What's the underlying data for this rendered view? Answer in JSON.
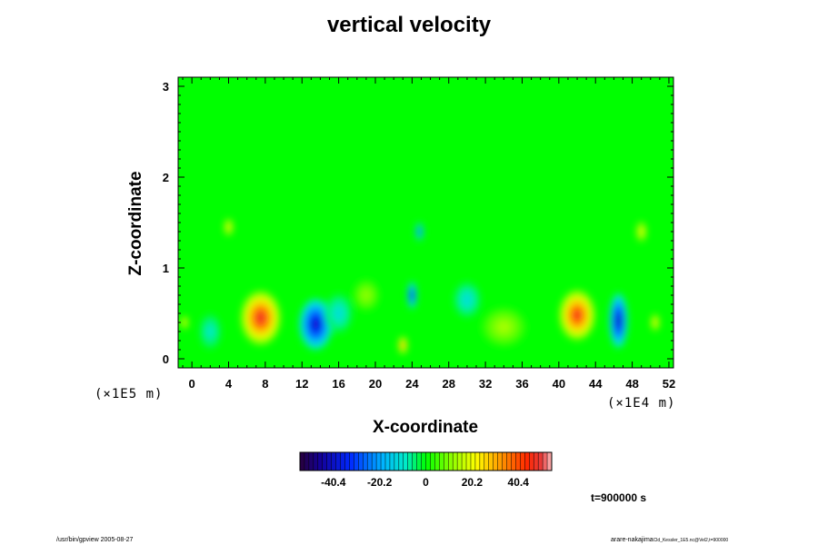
{
  "chart_data": {
    "type": "heatmap",
    "title": "vertical velocity",
    "xlabel": "X-coordinate",
    "ylabel": "Z-coordinate",
    "x_unit_label": "(×1E4 m)",
    "z_unit_label": "(×1E5 m)",
    "xlim": [
      -1.5,
      52.5
    ],
    "ylim": [
      -0.1,
      3.1
    ],
    "x_ticks": [
      "0",
      "4",
      "8",
      "12",
      "16",
      "20",
      "24",
      "28",
      "32",
      "36",
      "40",
      "44",
      "48",
      "52"
    ],
    "y_ticks": [
      "0",
      "1",
      "2",
      "3"
    ],
    "colorbar": {
      "ticks": [
        "-40.4",
        "-20.2",
        "0",
        "20.2",
        "40.4"
      ],
      "tick_values": [
        -40.4,
        -20.2,
        0,
        20.2,
        40.4
      ],
      "range": [
        -55,
        55
      ]
    },
    "background_value": 0,
    "features": [
      {
        "x": 7.5,
        "z": 0.45,
        "value": 48,
        "rx": 2.2,
        "rz": 0.3
      },
      {
        "x": 13.5,
        "z": 0.38,
        "value": -42,
        "rx": 1.8,
        "rz": 0.28
      },
      {
        "x": 42.0,
        "z": 0.48,
        "value": 46,
        "rx": 2.0,
        "rz": 0.28
      },
      {
        "x": 46.5,
        "z": 0.42,
        "value": -44,
        "rx": 1.0,
        "rz": 0.3
      },
      {
        "x": 24.0,
        "z": 0.7,
        "value": -38,
        "rx": 0.5,
        "rz": 0.15
      },
      {
        "x": 23.0,
        "z": 0.15,
        "value": 36,
        "rx": 0.5,
        "rz": 0.1
      },
      {
        "x": 34.0,
        "z": 0.35,
        "value": 14,
        "rx": 2.5,
        "rz": 0.22
      },
      {
        "x": 19.0,
        "z": 0.7,
        "value": 12,
        "rx": 1.5,
        "rz": 0.18
      },
      {
        "x": 16.0,
        "z": 0.5,
        "value": -12,
        "rx": 1.5,
        "rz": 0.22
      },
      {
        "x": 4.0,
        "z": 1.45,
        "value": 25,
        "rx": 0.5,
        "rz": 0.1
      },
      {
        "x": 49.0,
        "z": 1.4,
        "value": 22,
        "rx": 0.6,
        "rz": 0.12
      },
      {
        "x": 24.8,
        "z": 1.4,
        "value": -30,
        "rx": 0.4,
        "rz": 0.1
      },
      {
        "x": -0.8,
        "z": 0.4,
        "value": 26,
        "rx": 0.4,
        "rz": 0.08
      },
      {
        "x": 50.5,
        "z": 0.4,
        "value": 24,
        "rx": 0.5,
        "rz": 0.1
      },
      {
        "x": 30.0,
        "z": 0.65,
        "value": -12,
        "rx": 1.5,
        "rz": 0.2
      },
      {
        "x": 2.0,
        "z": 0.3,
        "value": -10,
        "rx": 1.2,
        "rz": 0.2
      }
    ]
  },
  "time_label": "t=900000 s",
  "footer": {
    "left": "/usr/bin/gpview 2005-08-27",
    "right_main": "arare-nakajima",
    "right_small": "Cld_Kessler_1E5.nc@Vel2,t=900000"
  }
}
